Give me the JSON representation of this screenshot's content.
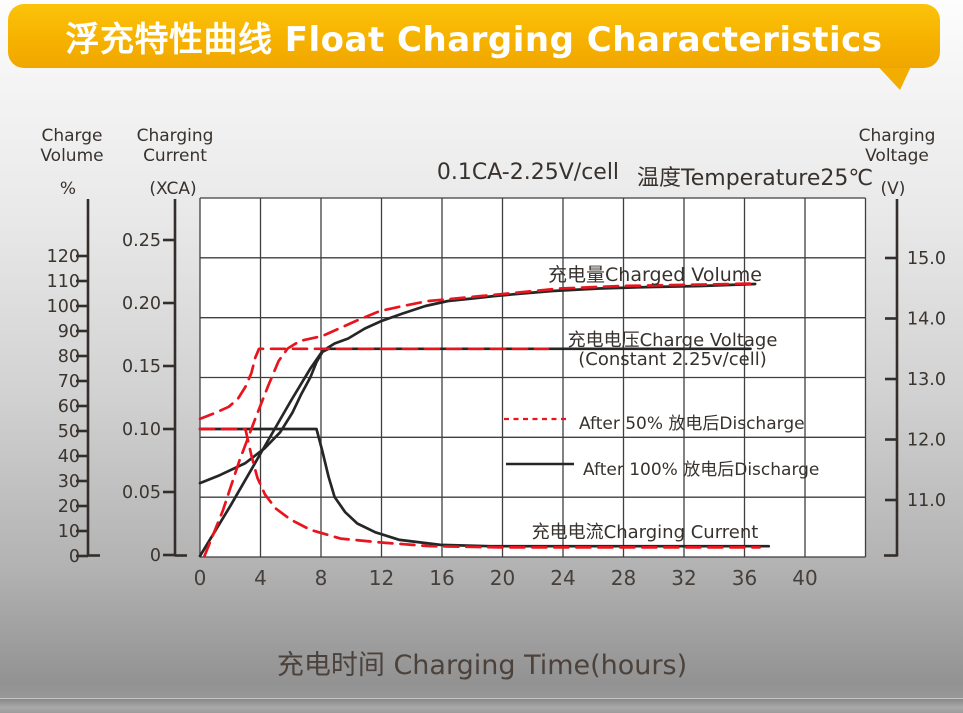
{
  "header": {
    "title": "浮充特性曲线 Float Charging Characteristics"
  },
  "chart": {
    "condition_left": "0.1CA-2.25V/cell",
    "condition_right": "温度Temperature25℃",
    "labels": {
      "charged_volume": "充电量Charged Volume",
      "charge_voltage_line1": "充电电压Charge Voltage",
      "charge_voltage_line2": "(Constant 2.25v/cell)",
      "charging_current": "充电电流Charging Current"
    },
    "legend": [
      {
        "name": "after-50-discharge",
        "style": "dashed",
        "color": "#e8141e",
        "label": "After 50% 放电后Discharge"
      },
      {
        "name": "after-100-discharge",
        "style": "solid",
        "color": "#262626",
        "label": "After 100% 放电后Discharge"
      }
    ],
    "colors": {
      "red": "#e8141e",
      "black": "#262626",
      "grid": "#3f3f3f",
      "axis": "#332e2b"
    }
  },
  "axes": {
    "volume": {
      "title_line1": "Charge",
      "title_line2": "Volume",
      "unit": "%",
      "ticks": [
        {
          "v": 120,
          "label": "120"
        },
        {
          "v": 110,
          "label": "110"
        },
        {
          "v": 100,
          "label": "100"
        },
        {
          "v": 90,
          "label": "90"
        },
        {
          "v": 80,
          "label": "80"
        },
        {
          "v": 70,
          "label": "70"
        },
        {
          "v": 60,
          "label": "60"
        },
        {
          "v": 50,
          "label": "50"
        },
        {
          "v": 40,
          "label": "40"
        },
        {
          "v": 30,
          "label": "30"
        },
        {
          "v": 20,
          "label": "20"
        },
        {
          "v": 10,
          "label": "10"
        },
        {
          "v": 0,
          "label": "0"
        }
      ]
    },
    "current": {
      "title_line1": "Charging",
      "title_line2": "Current",
      "unit": "(XCA)",
      "ticks": [
        {
          "v": 0.25,
          "label": "0.25"
        },
        {
          "v": 0.2,
          "label": "0.20"
        },
        {
          "v": 0.15,
          "label": "0.15"
        },
        {
          "v": 0.1,
          "label": "0.10"
        },
        {
          "v": 0.05,
          "label": "0.05"
        },
        {
          "v": 0,
          "label": "0"
        }
      ]
    },
    "voltage": {
      "title_line1": "Charging",
      "title_line2": "Voltage",
      "unit": "(V)",
      "ticks": [
        {
          "v": 15,
          "label": "15.0"
        },
        {
          "v": 14,
          "label": "14.0"
        },
        {
          "v": 13,
          "label": "13.0"
        },
        {
          "v": 12,
          "label": "12.0"
        },
        {
          "v": 11,
          "label": "11.0"
        }
      ]
    },
    "time": {
      "label": "充电时间 Charging Time(hours)",
      "ticks": [
        {
          "v": 0,
          "label": "0"
        },
        {
          "v": 4,
          "label": "4"
        },
        {
          "v": 8,
          "label": "8"
        },
        {
          "v": 12,
          "label": "12"
        },
        {
          "v": 16,
          "label": "16"
        },
        {
          "v": 20,
          "label": "20"
        },
        {
          "v": 24,
          "label": "24"
        },
        {
          "v": 28,
          "label": "28"
        },
        {
          "v": 32,
          "label": "32"
        },
        {
          "v": 36,
          "label": "36"
        },
        {
          "v": 40,
          "label": "40"
        }
      ]
    }
  },
  "chart_data": {
    "type": "line",
    "title": "浮充特性曲线 Float Charging Characteristics",
    "condition": "0.1CA-2.25V/cell 温度Temperature25℃",
    "xlabel": "充电时间 Charging Time(hours)",
    "x_unit": "hours",
    "x_range": [
      0,
      44
    ],
    "x_tick_step": 4,
    "y_axes": {
      "charge_volume_percent": {
        "range": [
          0,
          128
        ],
        "label": "Charge Volume %"
      },
      "charging_current_xca": {
        "range": [
          0,
          0.283
        ],
        "label": "Charging Current (XCA)"
      },
      "charging_voltage_v": {
        "range": [
          10.1,
          16.0
        ],
        "label": "Charging Voltage (V)"
      }
    },
    "series": [
      {
        "name": "charge-voltage-after-50",
        "quantity": "charging_voltage_v",
        "condition": "after 50% discharge",
        "color": "red",
        "style": "dashed",
        "points": [
          [
            0,
            12.34
          ],
          [
            1,
            12.44
          ],
          [
            1.9,
            12.54
          ],
          [
            2.5,
            12.67
          ],
          [
            3,
            12.87
          ],
          [
            3.4,
            13.1
          ],
          [
            3.65,
            13.35
          ],
          [
            3.9,
            13.5
          ],
          [
            23,
            13.5
          ]
        ]
      },
      {
        "name": "charge-voltage-after-100",
        "quantity": "charging_voltage_v",
        "condition": "after 100% discharge",
        "color": "black",
        "style": "solid",
        "points": [
          [
            0,
            11.28
          ],
          [
            1.3,
            11.41
          ],
          [
            3,
            11.61
          ],
          [
            4.3,
            11.86
          ],
          [
            5.3,
            12.12
          ],
          [
            6.1,
            12.44
          ],
          [
            6.7,
            12.75
          ],
          [
            7.3,
            13.03
          ],
          [
            7.7,
            13.28
          ],
          [
            8.1,
            13.45
          ],
          [
            8.5,
            13.5
          ],
          [
            36.4,
            13.5
          ]
        ]
      },
      {
        "name": "charged-volume-after-50",
        "quantity": "charge_volume_percent",
        "condition": "after 50% discharge",
        "color": "red",
        "style": "dashed",
        "points": [
          [
            0.3,
            0
          ],
          [
            1.5,
            18
          ],
          [
            2.6,
            38
          ],
          [
            3.6,
            54
          ],
          [
            4.5,
            68
          ],
          [
            5.2,
            78
          ],
          [
            5.8,
            83
          ],
          [
            6.6,
            86
          ],
          [
            8.1,
            88
          ],
          [
            10.3,
            94
          ],
          [
            11.9,
            98
          ],
          [
            13.4,
            100
          ],
          [
            15.1,
            102
          ],
          [
            16.9,
            103
          ],
          [
            18.6,
            104
          ],
          [
            20.4,
            105
          ],
          [
            22.1,
            106
          ],
          [
            23.8,
            107
          ],
          [
            27.8,
            108
          ],
          [
            32.4,
            108.5
          ],
          [
            36.7,
            109
          ]
        ]
      },
      {
        "name": "charged-volume-after-100",
        "quantity": "charge_volume_percent",
        "condition": "after 100% discharge",
        "color": "black",
        "style": "solid",
        "points": [
          [
            0,
            0
          ],
          [
            2,
            20
          ],
          [
            4.1,
            42
          ],
          [
            6,
            62
          ],
          [
            7.3,
            75
          ],
          [
            8.1,
            82
          ],
          [
            8.9,
            85
          ],
          [
            9.8,
            87
          ],
          [
            10.9,
            91
          ],
          [
            12,
            94
          ],
          [
            13.4,
            97
          ],
          [
            14.9,
            100
          ],
          [
            16.4,
            102
          ],
          [
            18,
            103
          ],
          [
            19.5,
            104
          ],
          [
            21.3,
            105
          ],
          [
            23.3,
            106
          ],
          [
            26.4,
            107
          ],
          [
            29.8,
            107.6
          ],
          [
            33.1,
            108
          ],
          [
            36.7,
            108.8
          ]
        ]
      },
      {
        "name": "charging-current-after-50",
        "quantity": "charging_current_xca",
        "condition": "after 50% discharge",
        "color": "red",
        "style": "dashed",
        "points": [
          [
            0,
            0.1
          ],
          [
            3,
            0.1
          ],
          [
            3.4,
            0.079
          ],
          [
            3.8,
            0.061
          ],
          [
            4.3,
            0.048
          ],
          [
            5,
            0.037
          ],
          [
            6,
            0.028
          ],
          [
            7.3,
            0.02
          ],
          [
            9.3,
            0.013
          ],
          [
            11.9,
            0.01
          ],
          [
            15.2,
            0.007
          ],
          [
            19.8,
            0.006
          ],
          [
            37,
            0.006
          ]
        ]
      },
      {
        "name": "charging-current-after-100",
        "quantity": "charging_current_xca",
        "condition": "after 100% discharge",
        "color": "black",
        "style": "solid",
        "points": [
          [
            0,
            0.1
          ],
          [
            7.7,
            0.1
          ],
          [
            8.1,
            0.082
          ],
          [
            8.5,
            0.062
          ],
          [
            8.9,
            0.046
          ],
          [
            9.6,
            0.034
          ],
          [
            10.4,
            0.025
          ],
          [
            11.6,
            0.018
          ],
          [
            13.2,
            0.012
          ],
          [
            15.9,
            0.008
          ],
          [
            19.2,
            0.007
          ],
          [
            37.6,
            0.007
          ]
        ]
      }
    ]
  }
}
